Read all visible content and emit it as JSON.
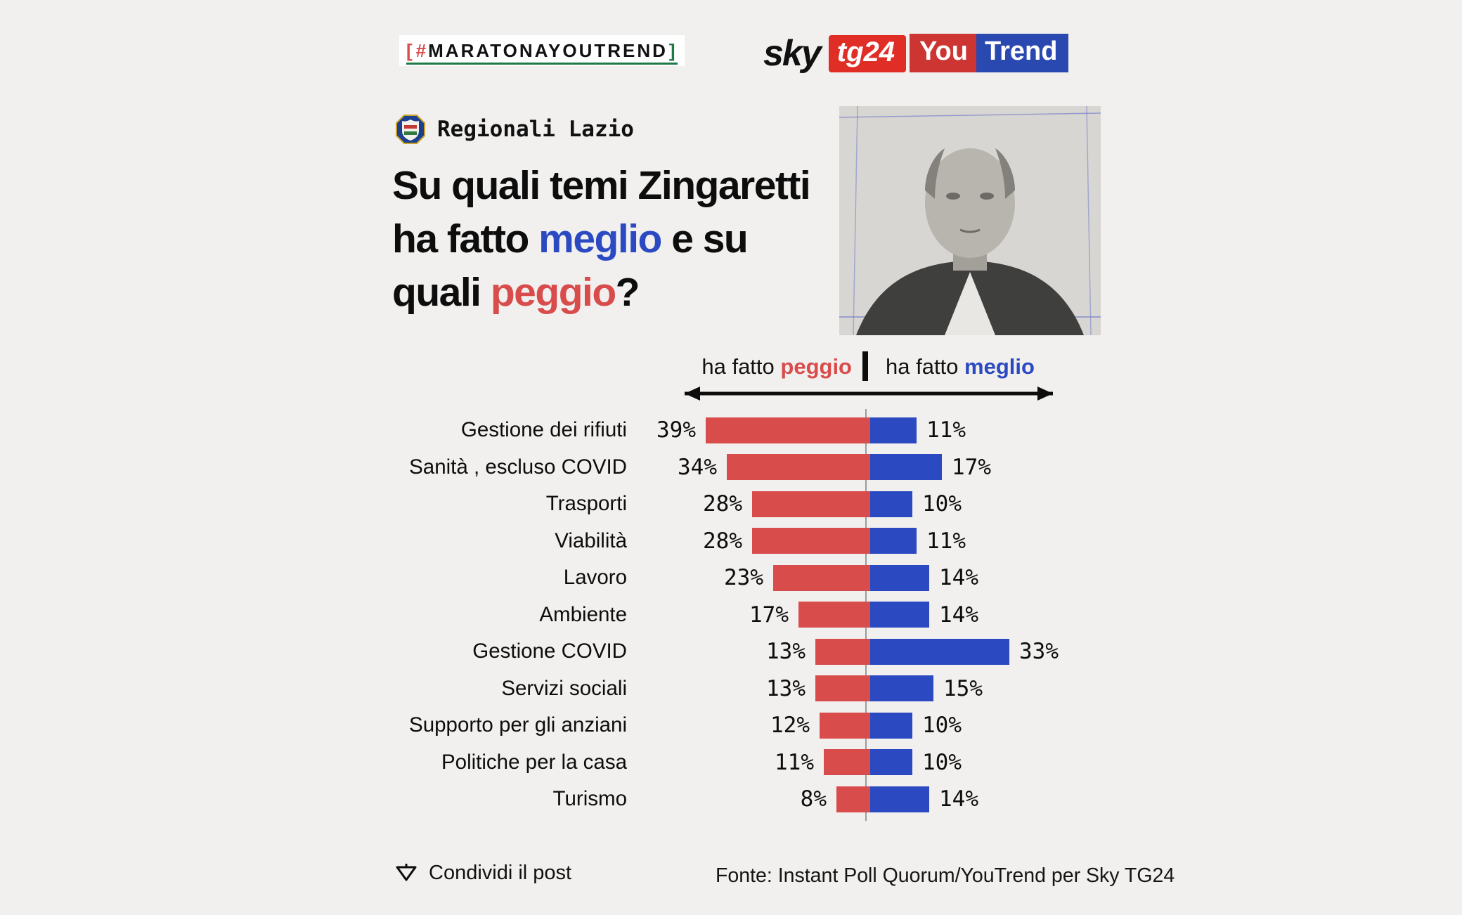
{
  "page": {
    "badge": {
      "bracket_left": "[",
      "hash": "#",
      "text": "MARATONAYOUTREND",
      "bracket_right": "]"
    },
    "logos": {
      "sky_word": "sky",
      "tg24_word": "tg24",
      "you_word": "You",
      "trend_word": "Trend"
    },
    "kicker": "Regionali Lazio",
    "title": {
      "l1": "Su quali temi Zingaretti",
      "l2a": "ha fatto ",
      "l2b": "meglio",
      "l2c": " e su",
      "l3a": "quali ",
      "l3b": "peggio",
      "l3c": "?"
    },
    "axis": {
      "left_prefix": "ha fatto ",
      "left_word": "peggio",
      "right_prefix": "ha fatto ",
      "right_word": "meglio"
    },
    "footer": {
      "share_label": "Condividi il post",
      "source": "Fonte: Instant Poll Quorum/YouTrend per Sky TG24"
    }
  },
  "colors": {
    "red": "#d94c4c",
    "blue": "#2b4ac2",
    "tg24_red": "#e02d26",
    "yt_red": "#cd3532",
    "yt_blue": "#2a49b0",
    "background": "#f1f0ee",
    "green_accent": "#1d7a45"
  },
  "chart_data": {
    "type": "bar",
    "subtype": "diverging-horizontal",
    "title": "Su quali temi Zingaretti ha fatto meglio e su quali peggio?",
    "unit": "%",
    "categories": [
      "Gestione dei rifiuti",
      "Sanità , escluso COVID",
      "Trasporti",
      "Viabilità",
      "Lavoro",
      "Ambiente",
      "Gestione COVID",
      "Servizi sociali",
      "Supporto per gli anziani",
      "Politiche per la casa",
      "Turismo"
    ],
    "series": [
      {
        "name": "ha fatto peggio",
        "direction": "left",
        "color": "#d94c4c",
        "values": [
          39,
          34,
          28,
          28,
          23,
          17,
          13,
          13,
          12,
          11,
          8
        ]
      },
      {
        "name": "ha fatto meglio",
        "direction": "right",
        "color": "#2b4ac2",
        "values": [
          11,
          17,
          10,
          11,
          14,
          14,
          33,
          15,
          10,
          10,
          14
        ]
      }
    ],
    "xlim": [
      -40,
      40
    ],
    "grid": false,
    "legend_position": "top-axis",
    "source": "Fonte: Instant Poll Quorum/YouTrend per Sky TG24"
  }
}
